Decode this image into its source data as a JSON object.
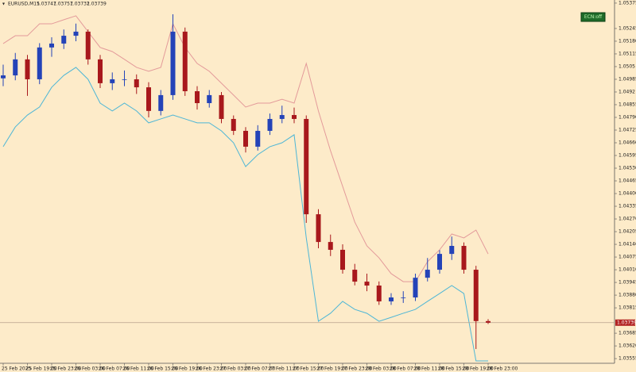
{
  "chart_data": {
    "type": "candlestick",
    "title": "EURUSD,M15",
    "button": "ECN:off",
    "categories": [
      "25 Feb 2025",
      null,
      "25 Feb 19:00",
      null,
      "25 Feb 23:00",
      null,
      "26 Feb 03:00",
      null,
      "26 Feb 07:00",
      null,
      "26 Feb 11:00",
      null,
      "26 Feb 15:00",
      null,
      "26 Feb 19:00",
      null,
      "26 Feb 23:00",
      null,
      "27 Feb 03:00",
      null,
      "27 Feb 07:00",
      null,
      "27 Feb 11:00",
      null,
      "27 Feb 15:00",
      null,
      "27 Feb 19:00",
      null,
      "27 Feb 23:00",
      null,
      "28 Feb 03:00",
      null,
      "28 Feb 07:00",
      null,
      "28 Feb 11:00",
      null,
      "28 Feb 15:00",
      null,
      "28 Feb 19:00",
      null,
      "28 Feb 23:00"
    ],
    "open": [
      1.0499,
      1.05005,
      1.05087,
      1.04985,
      1.05148,
      1.05168,
      1.05208,
      1.05229,
      1.05087,
      1.04965,
      1.04985,
      1.04985,
      1.04944,
      1.04823,
      1.04904,
      1.05229,
      1.04924,
      1.04863,
      1.04904,
      1.04782,
      1.04721,
      1.0464,
      1.04721,
      1.04782,
      1.04802,
      1.04782,
      1.04294,
      1.04152,
      1.04112,
      1.0401,
      1.03949,
      1.03929,
      1.03848,
      1.03868,
      1.03868,
      1.03969,
      1.0401,
      1.04091,
      1.04132,
      1.0401,
      1.03747
    ],
    "high": [
      1.0506,
      1.0512,
      1.0511,
      1.0517,
      1.052,
      1.0524,
      1.0527,
      1.0524,
      1.0511,
      1.0502,
      1.0503,
      1.0501,
      1.0497,
      1.0493,
      1.05318,
      1.0525,
      1.0495,
      1.0493,
      1.0492,
      1.048,
      1.0474,
      1.0475,
      1.0481,
      1.0485,
      1.0484,
      1.048,
      1.0432,
      1.0419,
      1.0414,
      1.0404,
      1.0399,
      1.0395,
      1.0389,
      1.039,
      1.0399,
      1.0407,
      1.0411,
      1.0418,
      1.0415,
      1.0403,
      1.03757
    ],
    "low": [
      1.0495,
      1.0498,
      1.049,
      1.0496,
      1.051,
      1.0514,
      1.0518,
      1.0506,
      1.0494,
      1.0493,
      1.0495,
      1.0491,
      1.0479,
      1.048,
      1.0488,
      1.049,
      1.0483,
      1.0484,
      1.0476,
      1.047,
      1.0461,
      1.0462,
      1.047,
      1.0476,
      1.0476,
      1.0425,
      1.0412,
      1.0408,
      1.0399,
      1.0393,
      1.039,
      1.0383,
      1.0383,
      1.0384,
      1.0385,
      1.0395,
      1.0399,
      1.0406,
      1.0399,
      1.03604,
      1.03732
    ],
    "close": [
      1.05005,
      1.05087,
      1.04985,
      1.05148,
      1.05168,
      1.05208,
      1.05229,
      1.05087,
      1.04965,
      1.04985,
      1.04985,
      1.04944,
      1.04823,
      1.04904,
      1.05229,
      1.04924,
      1.04863,
      1.04904,
      1.04782,
      1.04721,
      1.0464,
      1.04721,
      1.04782,
      1.04802,
      1.04782,
      1.04294,
      1.04152,
      1.04112,
      1.0401,
      1.03949,
      1.03929,
      1.03848,
      1.03868,
      1.03868,
      1.03969,
      1.0401,
      1.04091,
      1.04132,
      1.0401,
      1.03747,
      1.03739
    ],
    "up_color": "#2443b8",
    "down_color": "#a8181c",
    "upper_band": {
      "color": "#e39a9a",
      "values": [
        1.05168,
        1.05208,
        1.05208,
        1.05269,
        1.05269,
        1.0529,
        1.0531,
        1.05229,
        1.05148,
        1.05127,
        1.05087,
        1.05046,
        1.05026,
        1.05046,
        1.05269,
        1.05148,
        1.05066,
        1.05026,
        1.04965,
        1.04904,
        1.04843,
        1.04863,
        1.04863,
        1.04883,
        1.04863,
        1.05066,
        1.04823,
        1.04619,
        1.04437,
        1.04254,
        1.04132,
        1.04071,
        1.0399,
        1.03949,
        1.03949,
        1.04051,
        1.04112,
        1.04193,
        1.04173,
        1.04213,
        1.04091
      ]
    },
    "lower_band": {
      "color": "#4db6d6",
      "values": [
        1.0464,
        1.04741,
        1.04802,
        1.04843,
        1.04944,
        1.05005,
        1.05046,
        1.04985,
        1.04863,
        1.04823,
        1.04863,
        1.04823,
        1.04762,
        1.04782,
        1.04802,
        1.04782,
        1.04762,
        1.04762,
        1.04721,
        1.0466,
        1.04538,
        1.04599,
        1.0464,
        1.0466,
        1.04701,
        1.04173,
        1.03746,
        1.03787,
        1.03848,
        1.03807,
        1.03787,
        1.03746,
        1.03766,
        1.03787,
        1.03807,
        1.03848,
        1.03888,
        1.03929,
        1.03888,
        1.03543,
        1.03543
      ]
    },
    "current_price": 1.03739,
    "ylim": [
      1.03531,
      1.05391
    ],
    "yticks": [
      1.05375,
      1.05245,
      {
        "value": 1.0518,
        "label": "1.05180"
      },
      1.05115,
      1.0505,
      1.04985,
      1.0492,
      1.04855,
      {
        "value": 1.0479,
        "label": "1.04790"
      },
      1.04725,
      {
        "value": 1.0466,
        "label": "1.04660"
      },
      1.04595,
      {
        "value": 1.0453,
        "label": "1.04530"
      },
      1.04465,
      {
        "value": 1.044,
        "label": "1.04400"
      },
      1.04335,
      {
        "value": 1.0427,
        "label": "1.04270"
      },
      1.04205,
      {
        "value": 1.0414,
        "label": "1.04140"
      },
      1.04075,
      {
        "value": 1.0401,
        "label": "1.04010"
      },
      1.03945,
      {
        "value": 1.0388,
        "label": "1.03880"
      },
      1.03815,
      1.03685,
      {
        "value": 1.0362,
        "label": "1.03620"
      },
      1.03555
    ]
  }
}
